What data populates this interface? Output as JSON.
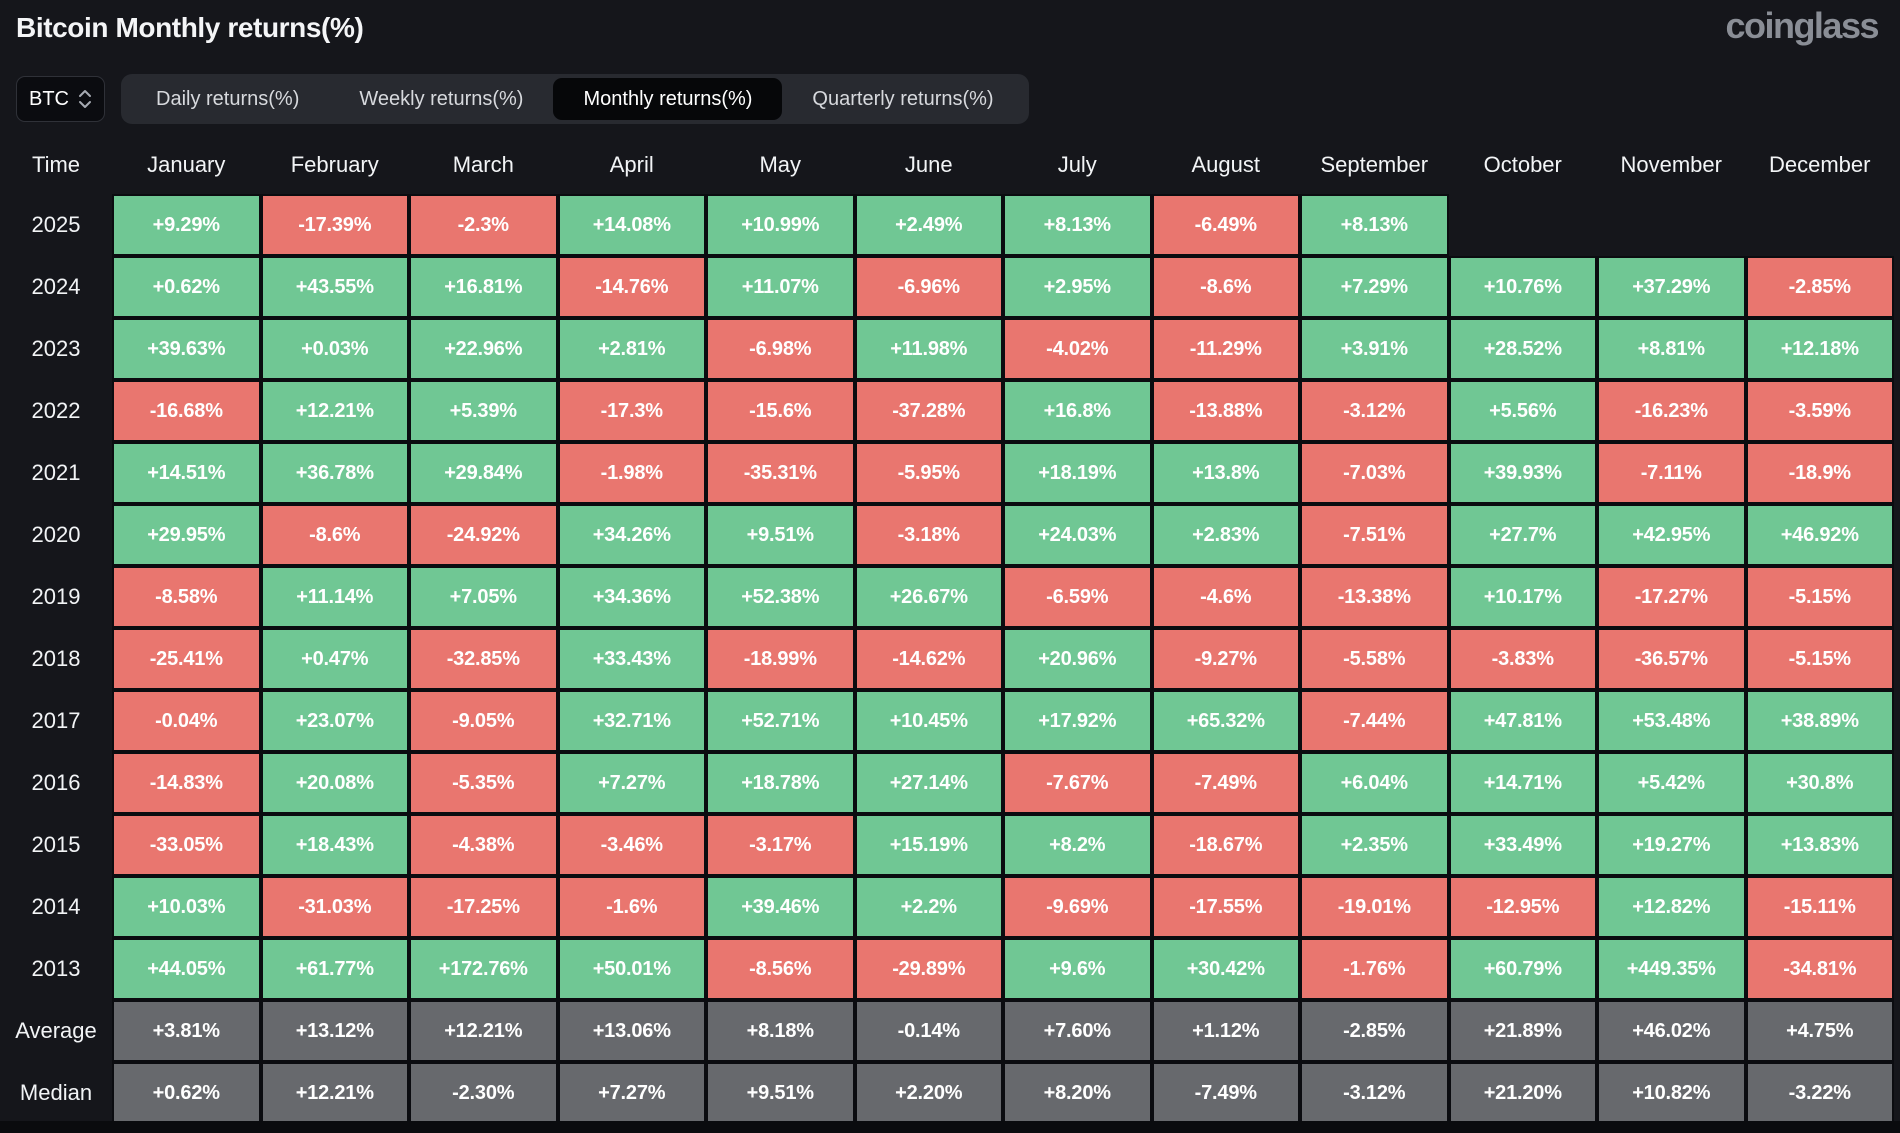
{
  "header": {
    "title": "Bitcoin Monthly returns(%)",
    "logo": "coinglass"
  },
  "controls": {
    "symbol": "BTC",
    "tabs": [
      {
        "label": "Daily returns(%)",
        "active": false
      },
      {
        "label": "Weekly returns(%)",
        "active": false
      },
      {
        "label": "Monthly returns(%)",
        "active": true
      },
      {
        "label": "Quarterly returns(%)",
        "active": false
      }
    ]
  },
  "colors": {
    "positive": "#70C794",
    "negative": "#E9766F",
    "neutral": "#67696D",
    "background": "#15161B",
    "grid_line": "#0B0C10",
    "tab_bar_bg": "#282A30",
    "active_tab_bg": "#060709",
    "logo_color": "#8A8E96"
  },
  "table": {
    "columns": [
      "Time",
      "January",
      "February",
      "March",
      "April",
      "May",
      "June",
      "July",
      "August",
      "September",
      "October",
      "November",
      "December"
    ],
    "rows": [
      {
        "label": "2025",
        "cells": [
          {
            "v": "+9.29%",
            "c": "green"
          },
          {
            "v": "-17.39%",
            "c": "red"
          },
          {
            "v": "-2.3%",
            "c": "red"
          },
          {
            "v": "+14.08%",
            "c": "green"
          },
          {
            "v": "+10.99%",
            "c": "green"
          },
          {
            "v": "+2.49%",
            "c": "green"
          },
          {
            "v": "+8.13%",
            "c": "green"
          },
          {
            "v": "-6.49%",
            "c": "red"
          },
          {
            "v": "+8.13%",
            "c": "green"
          },
          {
            "v": "",
            "c": "empty"
          },
          {
            "v": "",
            "c": "empty"
          },
          {
            "v": "",
            "c": "empty"
          }
        ]
      },
      {
        "label": "2024",
        "cells": [
          {
            "v": "+0.62%",
            "c": "green"
          },
          {
            "v": "+43.55%",
            "c": "green"
          },
          {
            "v": "+16.81%",
            "c": "green"
          },
          {
            "v": "-14.76%",
            "c": "red"
          },
          {
            "v": "+11.07%",
            "c": "green"
          },
          {
            "v": "-6.96%",
            "c": "red"
          },
          {
            "v": "+2.95%",
            "c": "green"
          },
          {
            "v": "-8.6%",
            "c": "red"
          },
          {
            "v": "+7.29%",
            "c": "green"
          },
          {
            "v": "+10.76%",
            "c": "green"
          },
          {
            "v": "+37.29%",
            "c": "green"
          },
          {
            "v": "-2.85%",
            "c": "red"
          }
        ]
      },
      {
        "label": "2023",
        "cells": [
          {
            "v": "+39.63%",
            "c": "green"
          },
          {
            "v": "+0.03%",
            "c": "green"
          },
          {
            "v": "+22.96%",
            "c": "green"
          },
          {
            "v": "+2.81%",
            "c": "green"
          },
          {
            "v": "-6.98%",
            "c": "red"
          },
          {
            "v": "+11.98%",
            "c": "green"
          },
          {
            "v": "-4.02%",
            "c": "red"
          },
          {
            "v": "-11.29%",
            "c": "red"
          },
          {
            "v": "+3.91%",
            "c": "green"
          },
          {
            "v": "+28.52%",
            "c": "green"
          },
          {
            "v": "+8.81%",
            "c": "green"
          },
          {
            "v": "+12.18%",
            "c": "green"
          }
        ]
      },
      {
        "label": "2022",
        "cells": [
          {
            "v": "-16.68%",
            "c": "red"
          },
          {
            "v": "+12.21%",
            "c": "green"
          },
          {
            "v": "+5.39%",
            "c": "green"
          },
          {
            "v": "-17.3%",
            "c": "red"
          },
          {
            "v": "-15.6%",
            "c": "red"
          },
          {
            "v": "-37.28%",
            "c": "red"
          },
          {
            "v": "+16.8%",
            "c": "green"
          },
          {
            "v": "-13.88%",
            "c": "red"
          },
          {
            "v": "-3.12%",
            "c": "red"
          },
          {
            "v": "+5.56%",
            "c": "green"
          },
          {
            "v": "-16.23%",
            "c": "red"
          },
          {
            "v": "-3.59%",
            "c": "red"
          }
        ]
      },
      {
        "label": "2021",
        "cells": [
          {
            "v": "+14.51%",
            "c": "green"
          },
          {
            "v": "+36.78%",
            "c": "green"
          },
          {
            "v": "+29.84%",
            "c": "green"
          },
          {
            "v": "-1.98%",
            "c": "red"
          },
          {
            "v": "-35.31%",
            "c": "red"
          },
          {
            "v": "-5.95%",
            "c": "red"
          },
          {
            "v": "+18.19%",
            "c": "green"
          },
          {
            "v": "+13.8%",
            "c": "green"
          },
          {
            "v": "-7.03%",
            "c": "red"
          },
          {
            "v": "+39.93%",
            "c": "green"
          },
          {
            "v": "-7.11%",
            "c": "red"
          },
          {
            "v": "-18.9%",
            "c": "red"
          }
        ]
      },
      {
        "label": "2020",
        "cells": [
          {
            "v": "+29.95%",
            "c": "green"
          },
          {
            "v": "-8.6%",
            "c": "red"
          },
          {
            "v": "-24.92%",
            "c": "red"
          },
          {
            "v": "+34.26%",
            "c": "green"
          },
          {
            "v": "+9.51%",
            "c": "green"
          },
          {
            "v": "-3.18%",
            "c": "red"
          },
          {
            "v": "+24.03%",
            "c": "green"
          },
          {
            "v": "+2.83%",
            "c": "green"
          },
          {
            "v": "-7.51%",
            "c": "red"
          },
          {
            "v": "+27.7%",
            "c": "green"
          },
          {
            "v": "+42.95%",
            "c": "green"
          },
          {
            "v": "+46.92%",
            "c": "green"
          }
        ]
      },
      {
        "label": "2019",
        "cells": [
          {
            "v": "-8.58%",
            "c": "red"
          },
          {
            "v": "+11.14%",
            "c": "green"
          },
          {
            "v": "+7.05%",
            "c": "green"
          },
          {
            "v": "+34.36%",
            "c": "green"
          },
          {
            "v": "+52.38%",
            "c": "green"
          },
          {
            "v": "+26.67%",
            "c": "green"
          },
          {
            "v": "-6.59%",
            "c": "red"
          },
          {
            "v": "-4.6%",
            "c": "red"
          },
          {
            "v": "-13.38%",
            "c": "red"
          },
          {
            "v": "+10.17%",
            "c": "green"
          },
          {
            "v": "-17.27%",
            "c": "red"
          },
          {
            "v": "-5.15%",
            "c": "red"
          }
        ]
      },
      {
        "label": "2018",
        "cells": [
          {
            "v": "-25.41%",
            "c": "red"
          },
          {
            "v": "+0.47%",
            "c": "green"
          },
          {
            "v": "-32.85%",
            "c": "red"
          },
          {
            "v": "+33.43%",
            "c": "green"
          },
          {
            "v": "-18.99%",
            "c": "red"
          },
          {
            "v": "-14.62%",
            "c": "red"
          },
          {
            "v": "+20.96%",
            "c": "green"
          },
          {
            "v": "-9.27%",
            "c": "red"
          },
          {
            "v": "-5.58%",
            "c": "red"
          },
          {
            "v": "-3.83%",
            "c": "red"
          },
          {
            "v": "-36.57%",
            "c": "red"
          },
          {
            "v": "-5.15%",
            "c": "red"
          }
        ]
      },
      {
        "label": "2017",
        "cells": [
          {
            "v": "-0.04%",
            "c": "red"
          },
          {
            "v": "+23.07%",
            "c": "green"
          },
          {
            "v": "-9.05%",
            "c": "red"
          },
          {
            "v": "+32.71%",
            "c": "green"
          },
          {
            "v": "+52.71%",
            "c": "green"
          },
          {
            "v": "+10.45%",
            "c": "green"
          },
          {
            "v": "+17.92%",
            "c": "green"
          },
          {
            "v": "+65.32%",
            "c": "green"
          },
          {
            "v": "-7.44%",
            "c": "red"
          },
          {
            "v": "+47.81%",
            "c": "green"
          },
          {
            "v": "+53.48%",
            "c": "green"
          },
          {
            "v": "+38.89%",
            "c": "green"
          }
        ]
      },
      {
        "label": "2016",
        "cells": [
          {
            "v": "-14.83%",
            "c": "red"
          },
          {
            "v": "+20.08%",
            "c": "green"
          },
          {
            "v": "-5.35%",
            "c": "red"
          },
          {
            "v": "+7.27%",
            "c": "green"
          },
          {
            "v": "+18.78%",
            "c": "green"
          },
          {
            "v": "+27.14%",
            "c": "green"
          },
          {
            "v": "-7.67%",
            "c": "red"
          },
          {
            "v": "-7.49%",
            "c": "red"
          },
          {
            "v": "+6.04%",
            "c": "green"
          },
          {
            "v": "+14.71%",
            "c": "green"
          },
          {
            "v": "+5.42%",
            "c": "green"
          },
          {
            "v": "+30.8%",
            "c": "green"
          }
        ]
      },
      {
        "label": "2015",
        "cells": [
          {
            "v": "-33.05%",
            "c": "red"
          },
          {
            "v": "+18.43%",
            "c": "green"
          },
          {
            "v": "-4.38%",
            "c": "red"
          },
          {
            "v": "-3.46%",
            "c": "red"
          },
          {
            "v": "-3.17%",
            "c": "red"
          },
          {
            "v": "+15.19%",
            "c": "green"
          },
          {
            "v": "+8.2%",
            "c": "green"
          },
          {
            "v": "-18.67%",
            "c": "red"
          },
          {
            "v": "+2.35%",
            "c": "green"
          },
          {
            "v": "+33.49%",
            "c": "green"
          },
          {
            "v": "+19.27%",
            "c": "green"
          },
          {
            "v": "+13.83%",
            "c": "green"
          }
        ]
      },
      {
        "label": "2014",
        "cells": [
          {
            "v": "+10.03%",
            "c": "green"
          },
          {
            "v": "-31.03%",
            "c": "red"
          },
          {
            "v": "-17.25%",
            "c": "red"
          },
          {
            "v": "-1.6%",
            "c": "red"
          },
          {
            "v": "+39.46%",
            "c": "green"
          },
          {
            "v": "+2.2%",
            "c": "green"
          },
          {
            "v": "-9.69%",
            "c": "red"
          },
          {
            "v": "-17.55%",
            "c": "red"
          },
          {
            "v": "-19.01%",
            "c": "red"
          },
          {
            "v": "-12.95%",
            "c": "red"
          },
          {
            "v": "+12.82%",
            "c": "green"
          },
          {
            "v": "-15.11%",
            "c": "red"
          }
        ]
      },
      {
        "label": "2013",
        "cells": [
          {
            "v": "+44.05%",
            "c": "green"
          },
          {
            "v": "+61.77%",
            "c": "green"
          },
          {
            "v": "+172.76%",
            "c": "green"
          },
          {
            "v": "+50.01%",
            "c": "green"
          },
          {
            "v": "-8.56%",
            "c": "red"
          },
          {
            "v": "-29.89%",
            "c": "red"
          },
          {
            "v": "+9.6%",
            "c": "green"
          },
          {
            "v": "+30.42%",
            "c": "green"
          },
          {
            "v": "-1.76%",
            "c": "red"
          },
          {
            "v": "+60.79%",
            "c": "green"
          },
          {
            "v": "+449.35%",
            "c": "green"
          },
          {
            "v": "-34.81%",
            "c": "red"
          }
        ]
      },
      {
        "label": "Average",
        "cells": [
          {
            "v": "+3.81%",
            "c": "gray"
          },
          {
            "v": "+13.12%",
            "c": "gray"
          },
          {
            "v": "+12.21%",
            "c": "gray"
          },
          {
            "v": "+13.06%",
            "c": "gray"
          },
          {
            "v": "+8.18%",
            "c": "gray"
          },
          {
            "v": "-0.14%",
            "c": "gray"
          },
          {
            "v": "+7.60%",
            "c": "gray"
          },
          {
            "v": "+1.12%",
            "c": "gray"
          },
          {
            "v": "-2.85%",
            "c": "gray"
          },
          {
            "v": "+21.89%",
            "c": "gray"
          },
          {
            "v": "+46.02%",
            "c": "gray"
          },
          {
            "v": "+4.75%",
            "c": "gray"
          }
        ]
      },
      {
        "label": "Median",
        "cells": [
          {
            "v": "+0.62%",
            "c": "gray"
          },
          {
            "v": "+12.21%",
            "c": "gray"
          },
          {
            "v": "-2.30%",
            "c": "gray"
          },
          {
            "v": "+7.27%",
            "c": "gray"
          },
          {
            "v": "+9.51%",
            "c": "gray"
          },
          {
            "v": "+2.20%",
            "c": "gray"
          },
          {
            "v": "+8.20%",
            "c": "gray"
          },
          {
            "v": "-7.49%",
            "c": "gray"
          },
          {
            "v": "-3.12%",
            "c": "gray"
          },
          {
            "v": "+21.20%",
            "c": "gray"
          },
          {
            "v": "+10.82%",
            "c": "gray"
          },
          {
            "v": "-3.22%",
            "c": "gray"
          }
        ]
      }
    ]
  }
}
